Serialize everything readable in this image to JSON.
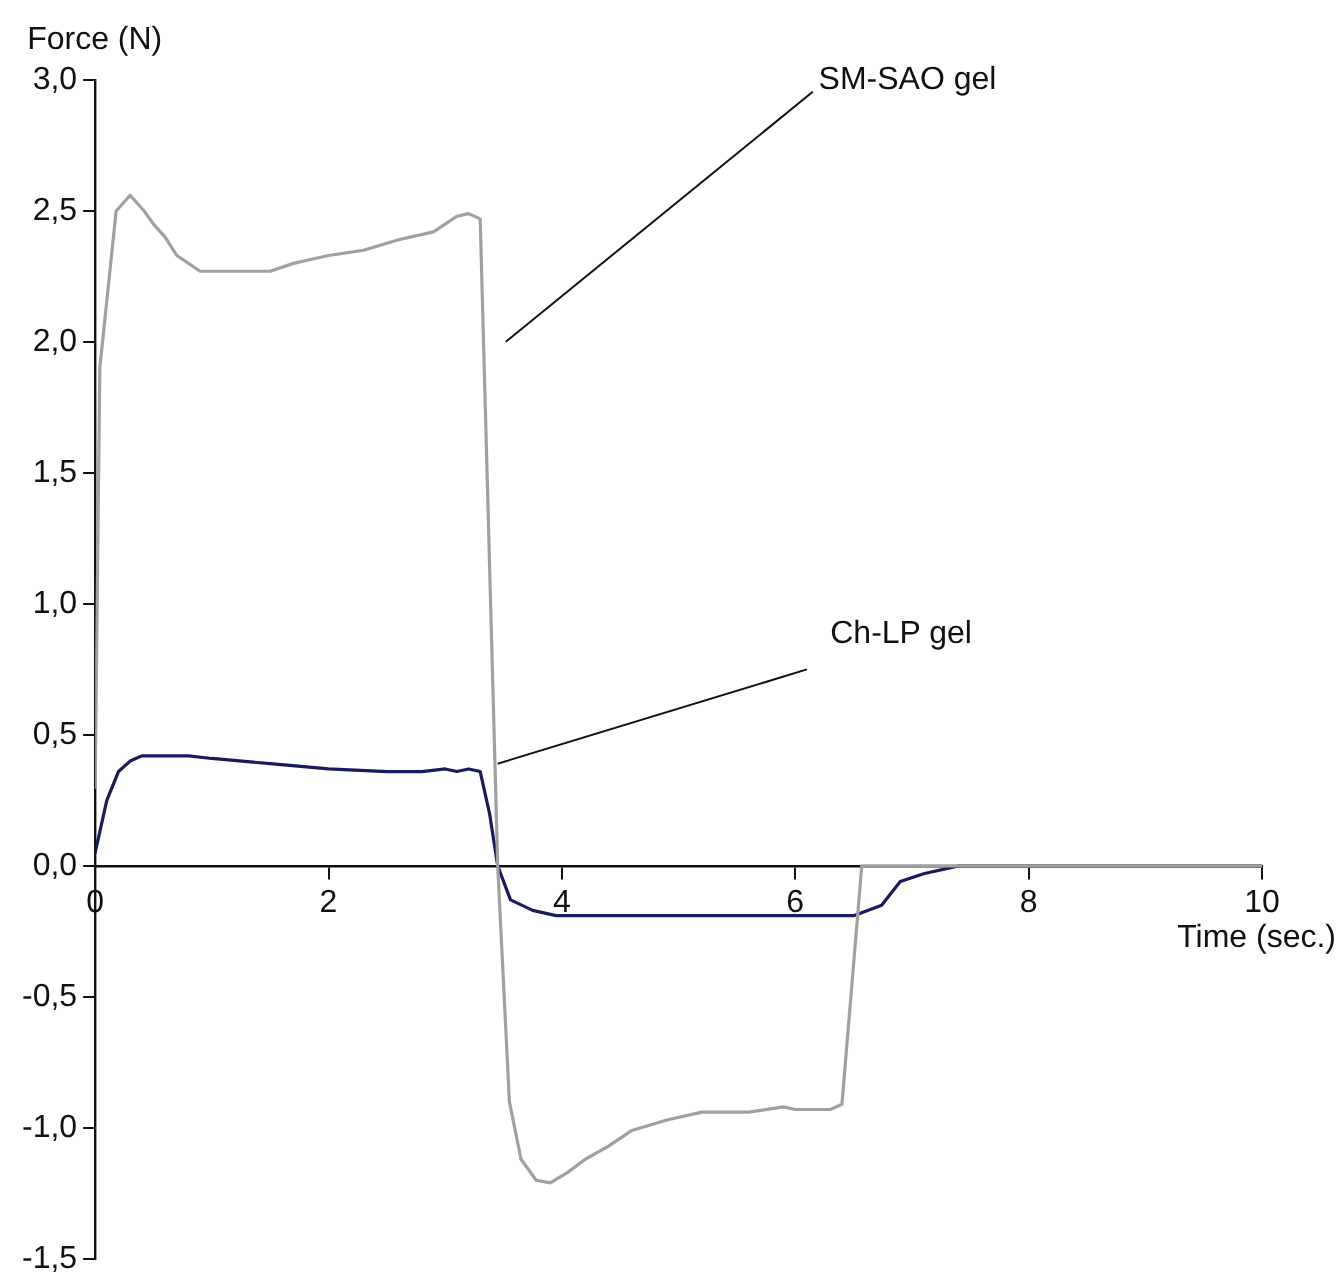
{
  "chart_data": {
    "type": "line",
    "xlabel": "Time (sec.)",
    "ylabel": "Force (N)",
    "xlim": [
      0,
      10
    ],
    "xticks": [
      0,
      2,
      4,
      6,
      8,
      10
    ],
    "ylim": [
      -1.5,
      3
    ],
    "yticks": [
      {
        "value": -1.5,
        "label": "-1,5"
      },
      {
        "value": -1,
        "label": "-1,0"
      },
      {
        "value": -0.5,
        "label": "-0,5"
      },
      {
        "value": 0,
        "label": "0,0"
      },
      {
        "value": 0.5,
        "label": "0,5"
      },
      {
        "value": 1,
        "label": "1,0"
      },
      {
        "value": 1.5,
        "label": "1,5"
      },
      {
        "value": 2,
        "label": "2,0"
      },
      {
        "value": 2.5,
        "label": "2,5"
      },
      {
        "value": 3,
        "label": "3,0"
      }
    ],
    "grid": false,
    "legend": false,
    "marker": "none",
    "line_style": "solid",
    "series": [
      {
        "name": "SM-SAO gel",
        "color": "#a0a0a0",
        "x": [
          0,
          0.04,
          0.18,
          0.3,
          0.42,
          0.5,
          0.6,
          0.7,
          0.9,
          1.5,
          1.7,
          1.8,
          2.0,
          2.3,
          2.6,
          2.9,
          3.1,
          3.2,
          3.3,
          3.45,
          3.55,
          3.65,
          3.78,
          3.9,
          4.05,
          4.2,
          4.4,
          4.6,
          4.9,
          5.2,
          5.6,
          5.9,
          6.0,
          6.3,
          6.4,
          6.57,
          10
        ],
        "values": [
          0.3,
          1.9,
          2.5,
          2.56,
          2.5,
          2.45,
          2.4,
          2.33,
          2.27,
          2.27,
          2.3,
          2.31,
          2.33,
          2.35,
          2.39,
          2.42,
          2.48,
          2.49,
          2.47,
          0.0,
          -0.9,
          -1.12,
          -1.2,
          -1.21,
          -1.17,
          -1.12,
          -1.07,
          -1.01,
          -0.97,
          -0.94,
          -0.94,
          -0.92,
          -0.93,
          -0.93,
          -0.91,
          0.0,
          0.0
        ]
      },
      {
        "name": "Ch-LP gel",
        "color": "#1a1a5e",
        "x": [
          0,
          0.1,
          0.2,
          0.3,
          0.4,
          0.8,
          1.0,
          1.5,
          2.0,
          2.5,
          2.8,
          3.0,
          3.1,
          3.2,
          3.3,
          3.38,
          3.45,
          3.56,
          3.75,
          3.95,
          6.5,
          6.74,
          6.9,
          7.1,
          7.4,
          10
        ],
        "values": [
          0.05,
          0.25,
          0.36,
          0.4,
          0.42,
          0.42,
          0.41,
          0.39,
          0.37,
          0.36,
          0.36,
          0.37,
          0.36,
          0.37,
          0.36,
          0.2,
          0.0,
          -0.13,
          -0.17,
          -0.19,
          -0.19,
          -0.15,
          -0.06,
          -0.03,
          0.0,
          0.0
        ]
      }
    ]
  }
}
